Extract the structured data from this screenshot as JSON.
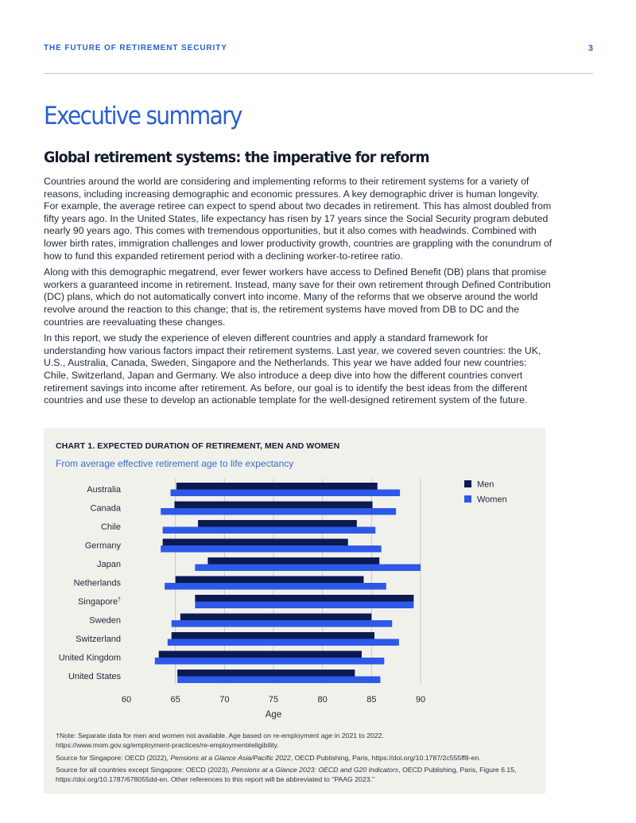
{
  "header": {
    "running_title": "THE FUTURE OF RETIREMENT SECURITY",
    "page_number": "3"
  },
  "section": {
    "title": "Executive summary",
    "subtitle": "Global retirement systems: the imperative for reform"
  },
  "paragraphs": [
    "Countries around the world are considering and implementing reforms to their retirement systems for a variety of reasons, including increasing demographic and economic pressures. A key demographic driver is human longevity. For example, the average retiree can expect to spend about two decades in retirement. This has almost doubled from fifty years ago. In the United States, life expectancy has risen by 17 years since the Social Security program debuted nearly 90 years ago. This comes with tremendous opportunities, but it also comes with headwinds. Combined with lower birth rates, immigration challenges and lower productivity growth, countries are grappling with the conundrum of how to fund this expanded retirement period with a declining worker-to-retiree ratio.",
    "Along with this demographic megatrend, ever fewer workers have access to Defined Benefit (DB) plans that promise workers a guaranteed income in retirement. Instead, many save for their own retirement through Defined Contribution (DC) plans, which do not automatically convert into income. Many of the reforms that we observe around the world revolve around the reaction to this change; that is, the retirement systems have moved from DB to DC and the countries are reevaluating these changes.",
    "In this report, we study the experience of eleven different countries and apply a standard framework for understanding how various factors impact their retirement systems. Last year, we covered seven countries: the UK, U.S., Australia, Canada, Sweden, Singapore and the Netherlands. This year we have added four new countries: Chile, Switzerland, Japan and Germany. We also introduce a deep dive into how the different countries convert retirement savings into income after retirement. As before, our goal is to identify the best ideas from the different countries and use these to develop an actionable template for the well-designed retirement system of the future."
  ],
  "chart_box": {
    "title": "CHART 1. EXPECTED DURATION OF RETIREMENT, MEN AND WOMEN",
    "subtitle": "From average effective retirement age to life expectancy",
    "notes": {
      "note_prefix": "†Note: Separate data for men and women not available. Age based on re-employment age in 2021 to 2022.",
      "note_url": "https://www.mom.gov.sg/employment-practices/re-employment#eligibility.",
      "source1_pre": "Source for Singapore: OECD (2022), ",
      "source1_italic": "Pensions at a Glance Asia/Pacific 2022",
      "source1_post": ", OECD Publishing, Paris, https://doi.org/10.1787/2c555ff8-en.",
      "source2_pre": "Source for all countries except Singapore: OECD (2023), ",
      "source2_italic": "Pensions at a Glance 2023: OECD and G20 Indicators",
      "source2_post": ", OECD Publishing, Paris, Figure 6.15, https://doi.org/10.1787/678055dd-en. Other references to this report will be abbreviated to \"PAAG 2023.\""
    }
  },
  "chart_data": {
    "type": "bar",
    "orientation": "horizontal",
    "floating": true,
    "xlabel": "Age",
    "xlim": [
      60,
      90
    ],
    "xticks": [
      60,
      65,
      70,
      75,
      80,
      85,
      90
    ],
    "grid": true,
    "legend_position": "top-right",
    "categories": [
      "Australia",
      "Canada",
      "Chile",
      "Germany",
      "Japan",
      "Netherlands",
      "Singapore",
      "Sweden",
      "Switzerland",
      "United Kingdom",
      "United States"
    ],
    "category_marks": [
      "",
      "",
      "",
      "",
      "",
      "",
      "†",
      "",
      "",
      "",
      ""
    ],
    "series": [
      {
        "name": "Men",
        "color": "#0c1a52",
        "start": [
          65.1,
          64.9,
          67.3,
          63.7,
          68.3,
          65.0,
          67.0,
          65.5,
          64.6,
          63.3,
          65.2
        ],
        "end": [
          85.6,
          85.1,
          83.5,
          82.6,
          85.8,
          84.2,
          89.3,
          85.0,
          85.3,
          84.0,
          83.3
        ]
      },
      {
        "name": "Women",
        "color": "#2d59e8",
        "start": [
          64.5,
          63.5,
          63.7,
          63.5,
          67.0,
          63.9,
          67.0,
          64.6,
          64.2,
          62.9,
          65.2
        ],
        "end": [
          87.9,
          87.5,
          85.4,
          86.0,
          90.0,
          86.5,
          89.3,
          87.1,
          87.8,
          86.3,
          85.9
        ]
      }
    ]
  }
}
